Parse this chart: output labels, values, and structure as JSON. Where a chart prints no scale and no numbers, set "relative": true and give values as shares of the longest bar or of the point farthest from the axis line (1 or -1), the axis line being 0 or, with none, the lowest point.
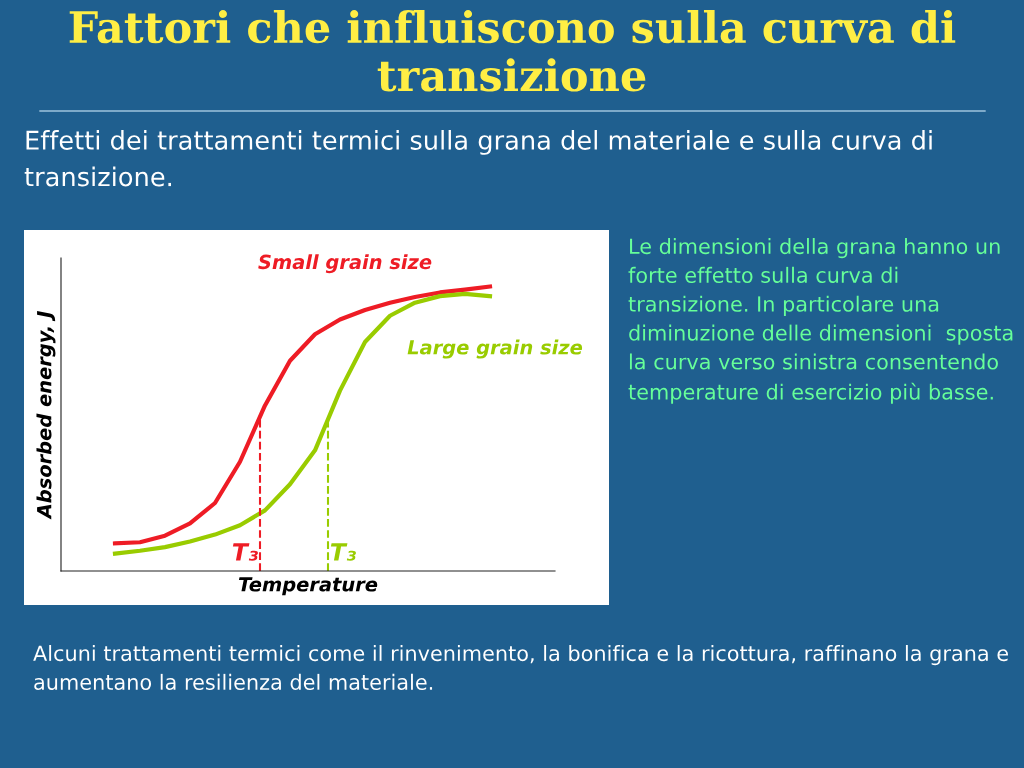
{
  "chart_data": {
    "type": "line",
    "relative": true,
    "title": "Fattori che influiscono sulla curva di transizione",
    "subtitle": "Effetti dei trattamenti termici sulla grana del materiale e sulla curva di transizione.",
    "xlabel": "Temperature",
    "ylabel": "Absorbed energy, J",
    "categories": [
      null,
      null,
      null,
      null,
      null,
      null,
      null,
      null,
      null,
      null,
      null,
      null,
      null,
      null,
      null,
      null
    ],
    "series": [
      {
        "name": "Small grain size",
        "color": "#ee1c25",
        "values": [
          0.097,
          0.101,
          0.124,
          0.167,
          0.239,
          0.384,
          0.582,
          0.739,
          0.832,
          0.884,
          0.917,
          0.943,
          0.963,
          0.979,
          0.989,
          1
        ]
      },
      {
        "name": "Large grain size",
        "color": "#99cc00",
        "values": [
          0.061,
          0.071,
          0.084,
          0.104,
          0.128,
          0.161,
          0.213,
          0.305,
          0.424,
          0.634,
          0.805,
          0.897,
          0.943,
          0.966,
          0.974,
          0.966
        ]
      }
    ],
    "annotations": [
      "Le dimensioni della grana hanno un forte effetto sulla curva di transizione. In particolare una diminuzione delle dimensioni  sposta la curva verso sinistra consentendo temperature di esercizio più basse.",
      "Alcuni trattamenti termici come il rinvenimento, la bonifica e la ricottura, raffinano la grana e aumentano la resilienza del materiale.",
      "T₃",
      "T₃"
    ],
    "legend": false,
    "marker": "none",
    "line_style": "solid"
  }
}
